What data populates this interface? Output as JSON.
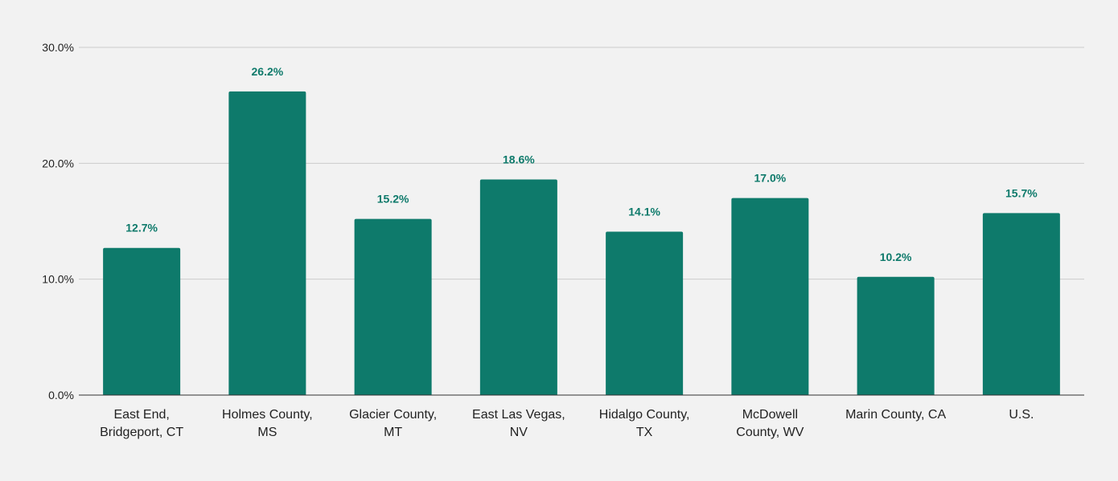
{
  "chart_data": {
    "type": "bar",
    "categories": [
      [
        "East End,",
        "Bridgeport, CT"
      ],
      [
        "Holmes County,",
        "MS"
      ],
      [
        "Glacier County,",
        "MT"
      ],
      [
        "East Las Vegas,",
        "NV"
      ],
      [
        "Hidalgo County,",
        "TX"
      ],
      [
        "McDowell",
        "County, WV"
      ],
      [
        "Marin County, CA"
      ],
      [
        "U.S."
      ]
    ],
    "values": [
      12.7,
      26.2,
      15.2,
      18.6,
      14.1,
      17.0,
      10.2,
      15.7
    ],
    "data_labels": [
      "12.7%",
      "26.2%",
      "15.2%",
      "18.6%",
      "14.1%",
      "17.0%",
      "10.2%",
      "15.7%"
    ],
    "y_ticks": [
      0,
      10,
      20,
      30
    ],
    "y_tick_labels": [
      "0.0%",
      "10.0%",
      "20.0%",
      "30.0%"
    ],
    "ylim": [
      0,
      30
    ],
    "grid": true,
    "legend": "none",
    "bar_color": "#0e7a6b",
    "label_color": "#0e7a6b",
    "background_color": "#f2f2f2"
  }
}
